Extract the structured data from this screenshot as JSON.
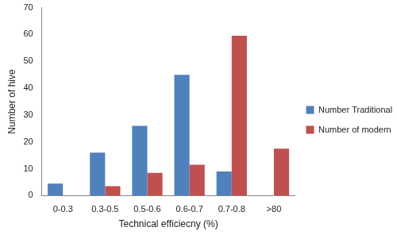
{
  "chart_data": {
    "type": "bar",
    "x_label": "Technical efficiecny (%)",
    "y_label": "Number of hive",
    "categories": [
      "0-0.3",
      "0.3-0.5",
      "0.5-0.6",
      "0.6-0.7",
      "0.7-0.8",
      ">80"
    ],
    "series": [
      {
        "name": "Number Traditional Hive",
        "color": "#4f81bd",
        "values": [
          4.5,
          16,
          26,
          45,
          9,
          null
        ]
      },
      {
        "name": "Number of modern hive",
        "color": "#c0504d",
        "values": [
          null,
          3.5,
          8.5,
          11.5,
          59.5,
          17.5
        ]
      }
    ],
    "ylim": [
      0,
      70
    ],
    "yticks": [
      0,
      10,
      20,
      30,
      40,
      50,
      60,
      70
    ],
    "grid": false,
    "legend": "right"
  }
}
